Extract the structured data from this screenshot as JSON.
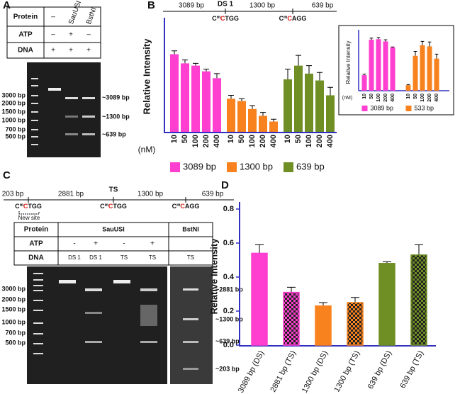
{
  "panels": [
    "A",
    "B",
    "C",
    "D"
  ],
  "panel_a": {
    "table": {
      "rows": [
        [
          "Protein",
          "–",
          "SauUSI",
          "BstNI"
        ],
        [
          "ATP",
          "–",
          "+",
          "–"
        ],
        [
          "DNA",
          "+",
          "+",
          "+"
        ]
      ]
    },
    "ladder": [
      "3000 bp",
      "2000 bp",
      "1500 bp",
      "1000 bp",
      "700 bp",
      "500 bp"
    ],
    "bands": [
      "~3089 bp",
      "~1300 bp",
      "~639 bp"
    ]
  },
  "panel_b": {
    "fragments": [
      "3089 bp",
      "1300 bp",
      "639 bp"
    ],
    "name": "DS 1",
    "sites": [
      [
        "C",
        "m",
        "C",
        "TGG"
      ],
      [
        "C",
        "m",
        "C",
        "AGG"
      ]
    ]
  },
  "panel_c": {
    "fragments": [
      "203 bp",
      "2881 bp",
      "1300 bp",
      "639 bp"
    ],
    "name": "TS",
    "new_site": "New site",
    "sites": [
      [
        "C",
        "m",
        "C",
        "TGG"
      ],
      [
        "C",
        "m",
        "C",
        "TGG"
      ],
      [
        "C",
        "m",
        "C",
        "AGG"
      ]
    ],
    "table": {
      "labels": [
        "Protein",
        "ATP",
        "DNA"
      ],
      "protein": [
        "SauUSI",
        "BstNI"
      ],
      "atp": [
        "-",
        "+",
        "-",
        "+"
      ],
      "dna": [
        "DS 1",
        "DS 1",
        "TS",
        "TS",
        "TS"
      ]
    },
    "ladder": [
      "3000 bp",
      "2000 bp",
      "1500 bp",
      "1000 bp",
      "700 bp",
      "500 bp"
    ],
    "bands": [
      "~2881 bp",
      "~1300 bp",
      "~639 bp",
      "~203 bp"
    ]
  },
  "chart_data": [
    {
      "type": "bar",
      "y_label": "Relative Intensity",
      "x_prefix": "(nM)",
      "categories": [
        "10",
        "50",
        "100",
        "200",
        "400"
      ],
      "ylim": [
        0,
        1
      ],
      "series": [
        {
          "name": "3089 bp",
          "color": "#ff3fd0",
          "values": [
            0.68,
            0.6,
            0.58,
            0.53,
            0.47
          ],
          "errors": [
            0.03,
            0.03,
            0.02,
            0.02,
            0.04
          ]
        },
        {
          "name": "1300 bp",
          "color": "#f7821e",
          "values": [
            0.29,
            0.27,
            0.2,
            0.14,
            0.09
          ],
          "errors": [
            0.03,
            0.02,
            0.03,
            0.03,
            0.02
          ]
        },
        {
          "name": "639 bp",
          "color": "#6f8f25",
          "values": [
            0.46,
            0.58,
            0.51,
            0.45,
            0.32
          ],
          "errors": [
            0.09,
            0.09,
            0.07,
            0.07,
            0.07
          ]
        }
      ]
    },
    {
      "type": "bar",
      "y_label": "Relative Intensity",
      "x_prefix": "(nM)",
      "categories": [
        "10",
        "50",
        "100",
        "200",
        "400"
      ],
      "ylim": [
        0,
        1.1
      ],
      "series": [
        {
          "name": "3089 bp",
          "color": "#ff3fd0",
          "values": [
            0.28,
            0.92,
            0.93,
            0.89,
            0.78
          ],
          "errors": [
            0.02,
            0.03,
            0.03,
            0.03,
            0.01
          ]
        },
        {
          "name": "533 bp",
          "color": "#f7821e",
          "values": [
            0.1,
            0.63,
            0.82,
            0.8,
            0.58
          ],
          "errors": [
            0.01,
            0.08,
            0.07,
            0.08,
            0.08
          ]
        }
      ]
    },
    {
      "type": "bar",
      "y_label": "Relative Intensity",
      "categories": [
        "3089 bp (DS)",
        "2881 bp (TS)",
        "1300 bp (DS)",
        "1300 bp (TS)",
        "639 bp (DS)",
        "639 bp (TS)"
      ],
      "values": [
        0.54,
        0.31,
        0.23,
        0.25,
        0.48,
        0.53
      ],
      "errors": [
        0.05,
        0.03,
        0.02,
        0.03,
        0.01,
        0.06
      ],
      "colors": [
        "#ff3fd0",
        "#ff3fd0",
        "#f7821e",
        "#f7821e",
        "#6f8f25",
        "#6f8f25"
      ],
      "checkered": [
        false,
        true,
        false,
        true,
        false,
        true
      ],
      "ylim": [
        0,
        0.8
      ],
      "yticks": [
        {
          "value": 0,
          "label": "0.0"
        },
        0.2,
        0.4,
        0.6,
        0.8
      ]
    }
  ]
}
